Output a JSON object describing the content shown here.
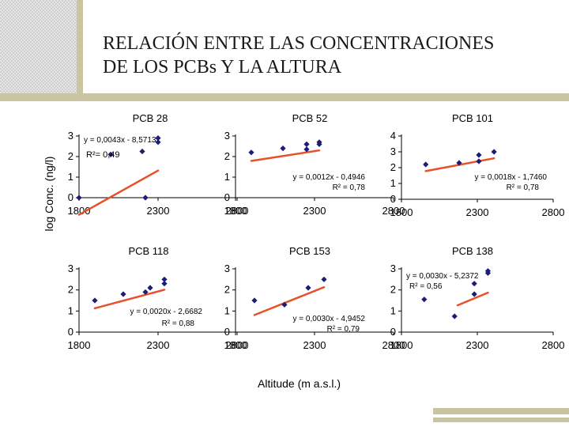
{
  "title": {
    "line1": "RELACIÓN ENTRE LAS CONCENTRACIONES",
    "line2": "DE LOS PCBs Y LA ALTURA"
  },
  "ylabel": "log Conc. (ng/l)",
  "xlabel": "Altitude (m a.s.l.)",
  "colors": {
    "points": "#1c1c7a",
    "trend": "#e8502a",
    "decor": "#c9c4a2"
  },
  "chart_data": [
    {
      "type": "scatter",
      "title": "PCB 28",
      "equation": "y = 0,0043x - 8,5713",
      "r2": "R²= 0,49",
      "xticks": [
        "1800",
        "2300",
        "2800"
      ],
      "yticks": [
        "0",
        "1",
        "2",
        "3"
      ],
      "xlim": [
        1800,
        2800
      ],
      "ylim": [
        0,
        3
      ],
      "points": [
        [
          1800,
          0.0
        ],
        [
          2000,
          2.1
        ],
        [
          2200,
          2.25
        ],
        [
          2220,
          0.0
        ],
        [
          2300,
          2.7
        ],
        [
          2300,
          2.9
        ]
      ],
      "trend": [
        [
          1800,
          -0.83
        ],
        [
          2300,
          1.32
        ]
      ]
    },
    {
      "type": "scatter",
      "title": "PCB 52",
      "equation": "y = 0,0012x - 0,4946",
      "r2": "R² = 0,78",
      "xticks": [
        "1800",
        "2300",
        "2800"
      ],
      "yticks": [
        "0",
        "1",
        "2",
        "3"
      ],
      "xlim": [
        1800,
        2800
      ],
      "ylim": [
        0,
        3
      ],
      "points": [
        [
          1900,
          2.2
        ],
        [
          2100,
          2.4
        ],
        [
          2250,
          2.35
        ],
        [
          2250,
          2.6
        ],
        [
          2330,
          2.6
        ],
        [
          2330,
          2.7
        ]
      ],
      "trend": [
        [
          1900,
          1.79
        ],
        [
          2330,
          2.3
        ]
      ]
    },
    {
      "type": "scatter",
      "title": "PCB 101",
      "equation": "y = 0,0018x - 1,7460",
      "r2": "R² = 0,78",
      "xticks": [
        "1800",
        "2300",
        "2800"
      ],
      "yticks": [
        "0",
        "1",
        "2",
        "3",
        "4"
      ],
      "xlim": [
        1800,
        2800
      ],
      "ylim": [
        0,
        4
      ],
      "points": [
        [
          1960,
          2.2
        ],
        [
          2180,
          2.3
        ],
        [
          2310,
          2.4
        ],
        [
          2310,
          2.8
        ],
        [
          2410,
          3.0
        ]
      ],
      "trend": [
        [
          1960,
          1.78
        ],
        [
          2410,
          2.59
        ]
      ]
    },
    {
      "type": "scatter",
      "title": "PCB 118",
      "equation": "y = 0,0020x - 2,6682",
      "r2": "R² = 0,88",
      "xticks": [
        "1800",
        "2300",
        "2800"
      ],
      "yticks": [
        "0",
        "1",
        "2",
        "3"
      ],
      "xlim": [
        1800,
        2800
      ],
      "ylim": [
        0,
        3
      ],
      "points": [
        [
          1900,
          1.5
        ],
        [
          2080,
          1.8
        ],
        [
          2220,
          1.9
        ],
        [
          2250,
          2.1
        ],
        [
          2340,
          2.3
        ],
        [
          2340,
          2.5
        ]
      ],
      "trend": [
        [
          1900,
          1.13
        ],
        [
          2340,
          2.01
        ]
      ]
    },
    {
      "type": "scatter",
      "title": "PCB 153",
      "equation": "y = 0,0030x - 4,9452",
      "r2": "R² = 0,79",
      "xticks": [
        "1800",
        "2300",
        "2800"
      ],
      "yticks": [
        "0",
        "1",
        "2",
        "3"
      ],
      "xlim": [
        1800,
        2800
      ],
      "ylim": [
        0,
        3
      ],
      "points": [
        [
          1920,
          1.5
        ],
        [
          2110,
          1.3
        ],
        [
          2260,
          2.1
        ],
        [
          2360,
          2.5
        ]
      ],
      "trend": [
        [
          1920,
          0.81
        ],
        [
          2360,
          2.13
        ]
      ]
    },
    {
      "type": "scatter",
      "title": "PCB 138",
      "equation": "y = 0,0030x - 5,2372",
      "r2": "R² = 0,56",
      "xticks": [
        "1800",
        "2300",
        "2800"
      ],
      "yticks": [
        "0",
        "1",
        "2",
        "3"
      ],
      "xlim": [
        1800,
        2800
      ],
      "ylim": [
        0,
        3
      ],
      "points": [
        [
          1950,
          1.55
        ],
        [
          2150,
          0.75
        ],
        [
          2280,
          1.8
        ],
        [
          2280,
          2.3
        ],
        [
          2370,
          2.8
        ],
        [
          2370,
          2.9
        ]
      ],
      "trend": [
        [
          2170,
          1.27
        ],
        [
          2370,
          1.87
        ]
      ]
    }
  ]
}
